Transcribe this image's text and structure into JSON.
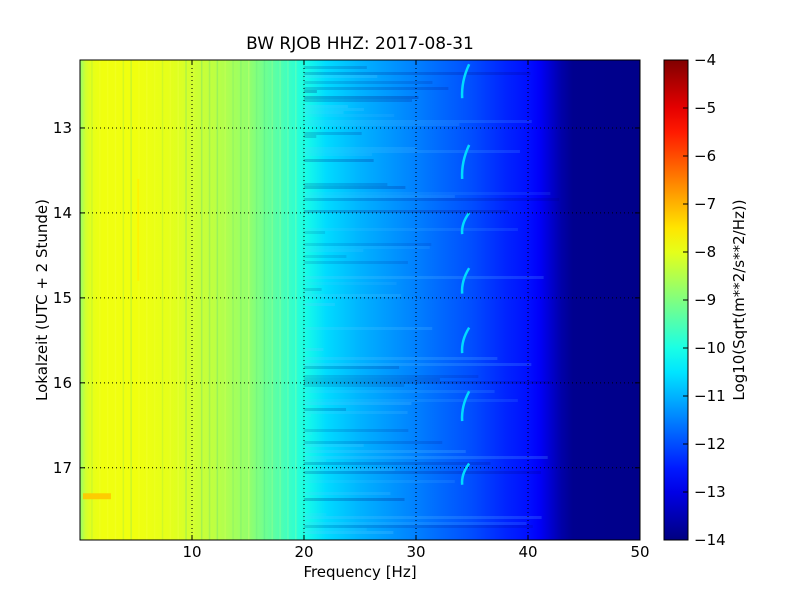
{
  "chart_data": {
    "type": "heatmap",
    "title": "BW RJOB HHZ: 2017-08-31",
    "xlabel": "Frequency [Hz]",
    "ylabel": "Lokalzeit (UTC + 2 Stunde)",
    "colorbar_label": "Log10(Sqrt(m**2/s**2/Hz))",
    "xlim": [
      0,
      50
    ],
    "ylim": [
      12.2,
      17.85
    ],
    "y_inverted": true,
    "x_ticks": [
      10,
      20,
      30,
      40,
      50
    ],
    "x_tick_labels": [
      "10",
      "20",
      "30",
      "40",
      "50"
    ],
    "y_ticks": [
      13,
      14,
      15,
      16,
      17
    ],
    "y_tick_labels": [
      "13",
      "14",
      "15",
      "16",
      "17"
    ],
    "colorbar_range": [
      -14,
      -4
    ],
    "colorbar_ticks": [
      -4,
      -5,
      -6,
      -7,
      -8,
      -9,
      -10,
      -11,
      -12,
      -13,
      -14
    ],
    "colorbar_tick_labels": [
      "−4",
      "−5",
      "−6",
      "−7",
      "−8",
      "−9",
      "−10",
      "−11",
      "−12",
      "−13",
      "−14"
    ],
    "colormap": "jet",
    "grid": true,
    "profile": {
      "frequency_hz": [
        0,
        0.5,
        1,
        2,
        5,
        8,
        10,
        12,
        15,
        18,
        20,
        22,
        25,
        28,
        30,
        32,
        35,
        38,
        40,
        41,
        42,
        43,
        44,
        50
      ],
      "log10_level": [
        -8.8,
        -8.2,
        -8.0,
        -7.9,
        -7.9,
        -8.0,
        -8.2,
        -8.4,
        -8.8,
        -9.5,
        -10.0,
        -10.6,
        -11.0,
        -11.3,
        -11.5,
        -11.7,
        -12.0,
        -12.4,
        -12.6,
        -12.8,
        -13.2,
        -13.6,
        -13.85,
        -13.9
      ]
    },
    "features": [
      {
        "frequency_hz": 34.3,
        "log10_level": -10.6,
        "hours": [
          12.25,
          12.65,
          13.2,
          13.6,
          14.0,
          14.25,
          14.65,
          14.95,
          15.35,
          15.65,
          16.1,
          16.45,
          16.95,
          17.2
        ]
      },
      {
        "frequency_hz": 0.8,
        "log10_level": -7.2,
        "hours": [
          17.3,
          17.37
        ]
      },
      {
        "frequency_hz": 5.2,
        "log10_level": -7.6,
        "hours": [
          13.6,
          14.8
        ]
      }
    ]
  }
}
